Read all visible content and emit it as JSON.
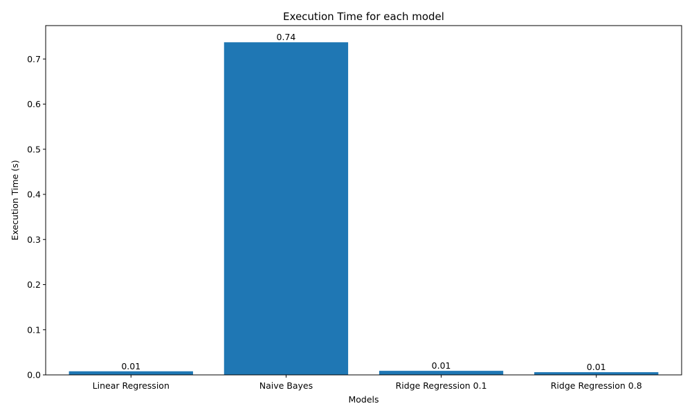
{
  "chart_data": {
    "type": "bar",
    "title": "Execution Time for each model",
    "xlabel": "Models",
    "ylabel": "Execution Time (s)",
    "categories": [
      "Linear Regression",
      "Naive Bayes",
      "Ridge Regression 0.1",
      "Ridge Regression 0.8"
    ],
    "values": [
      0.008,
      0.737,
      0.009,
      0.006
    ],
    "data_labels": [
      "0.01",
      "0.74",
      "0.01",
      "0.01"
    ],
    "ylim": [
      0,
      0.774
    ],
    "yticks": [
      0.0,
      0.1,
      0.2,
      0.3,
      0.4,
      0.5,
      0.6,
      0.7
    ],
    "ytick_labels": [
      "0.0",
      "0.1",
      "0.2",
      "0.3",
      "0.4",
      "0.5",
      "0.6",
      "0.7"
    ],
    "grid": false,
    "legend": "none",
    "bar_color": "#1f77b4"
  }
}
